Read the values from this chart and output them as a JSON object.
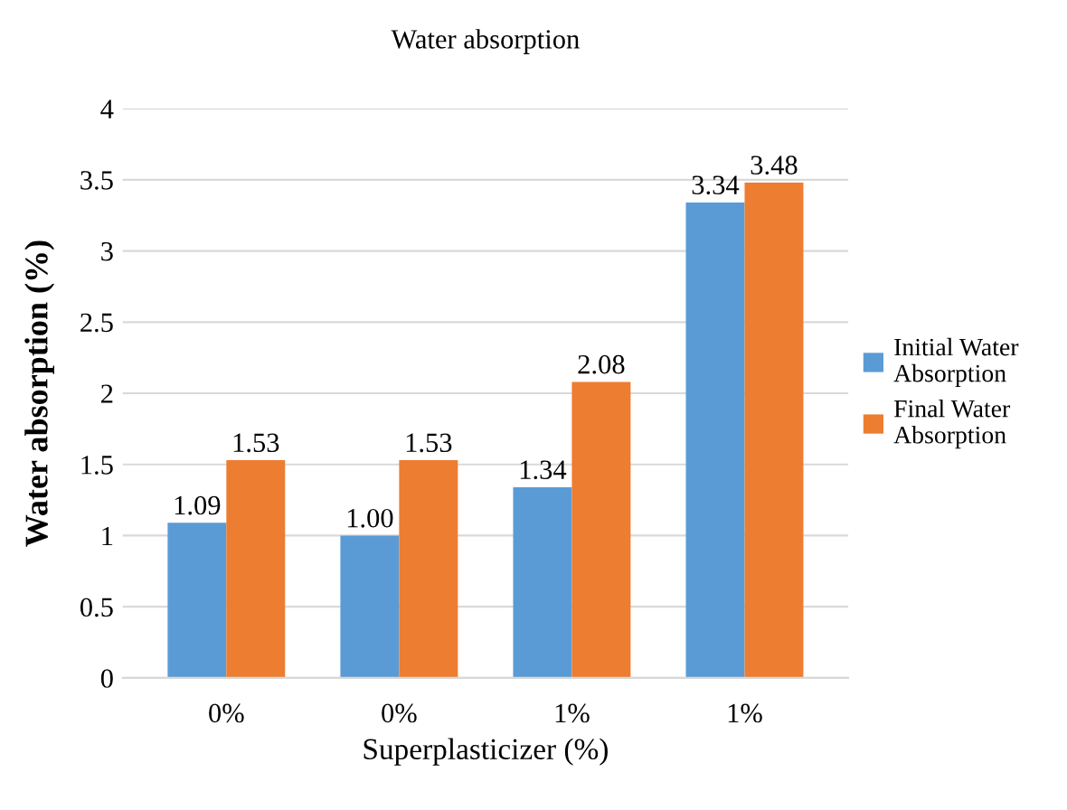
{
  "chart_data": {
    "type": "bar",
    "title": "Water absorption",
    "xlabel": "Superplasticizer (%)",
    "ylabel": "Water absorption (%)",
    "categories": [
      "0%",
      "0%",
      "1%",
      "1%"
    ],
    "series": [
      {
        "name": "Initial Water Absorption",
        "color": "#5b9bd5",
        "values": [
          1.09,
          1.0,
          1.34,
          3.34
        ],
        "value_labels": [
          "1.09",
          "1.00",
          "1.34",
          "3.34"
        ]
      },
      {
        "name": "Final Water Absorption",
        "color": "#ed7d31",
        "values": [
          1.53,
          1.53,
          2.08,
          3.48
        ],
        "value_labels": [
          "1.53",
          "1.53",
          "2.08",
          "3.48"
        ]
      }
    ],
    "ylim": [
      0,
      4
    ],
    "yticks": [
      0,
      0.5,
      1,
      1.5,
      2,
      2.5,
      3,
      3.5,
      4
    ],
    "grid": "y",
    "legend": "right"
  }
}
